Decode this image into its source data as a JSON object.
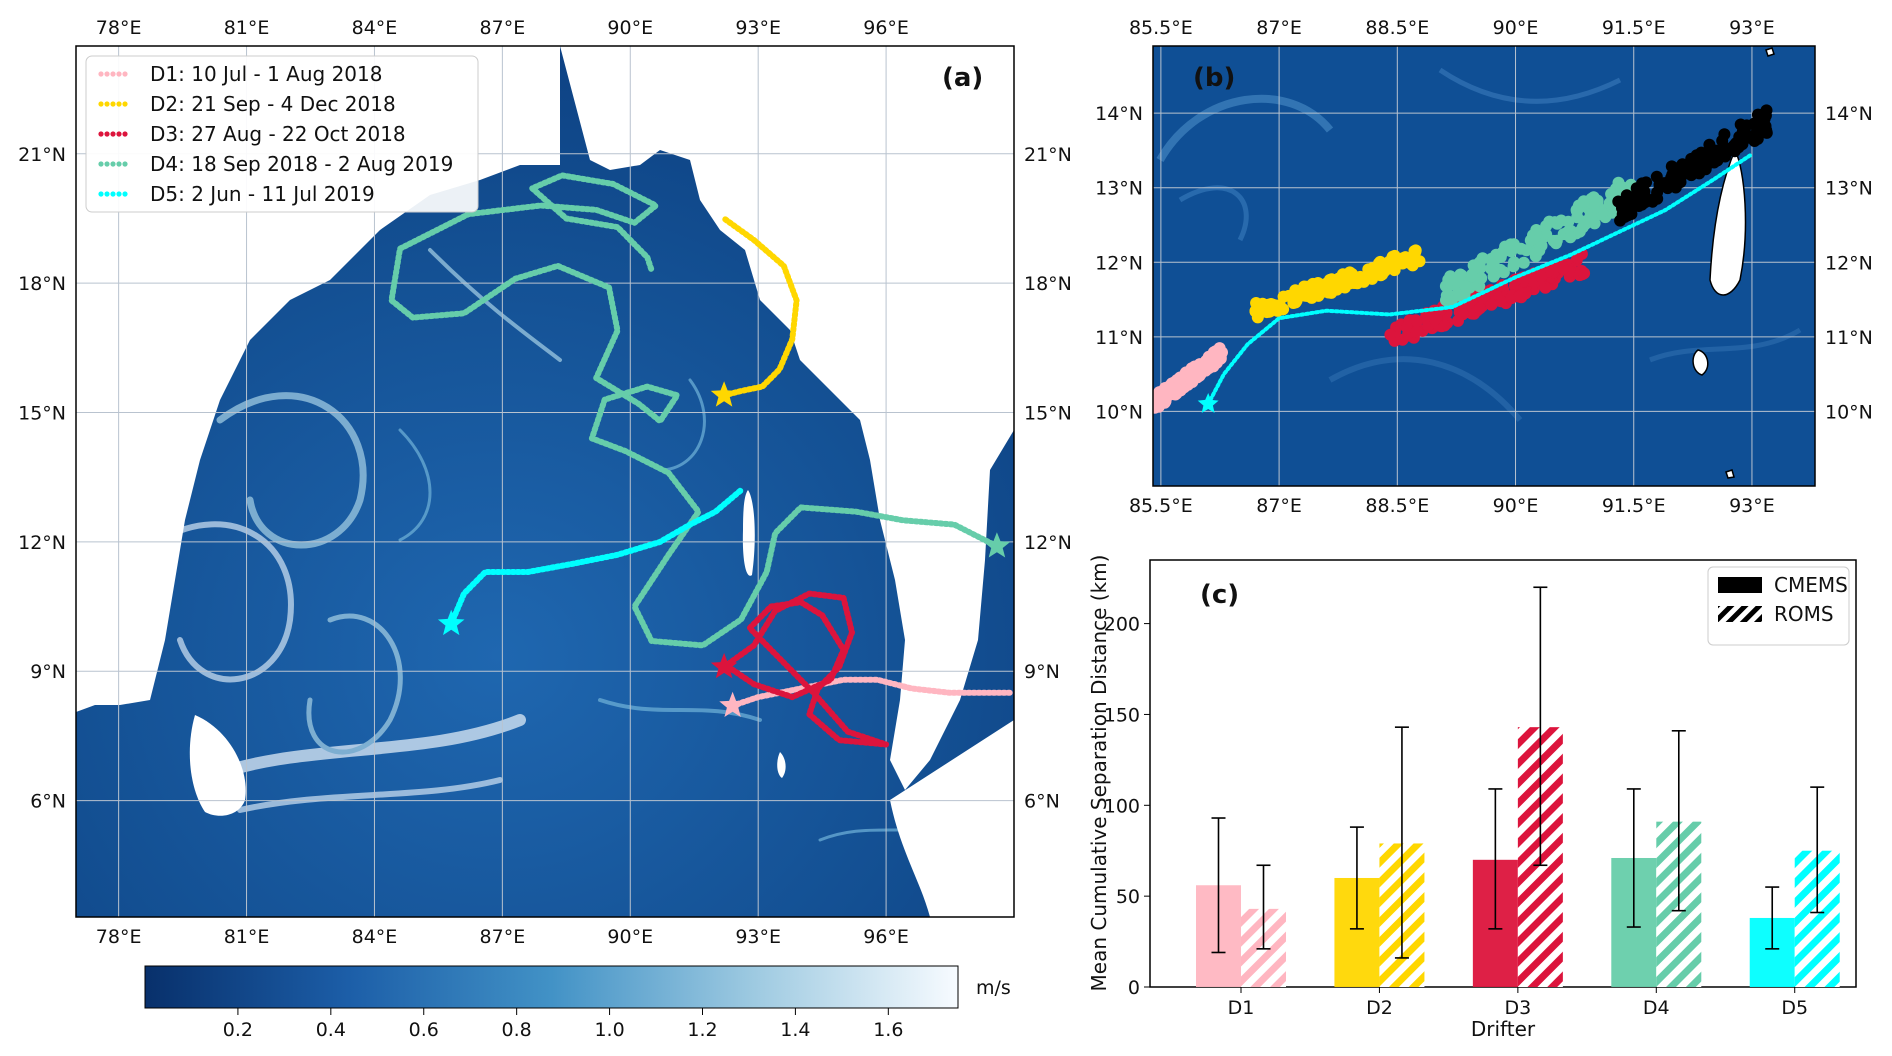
{
  "colors": {
    "D1": "#FFB6C1",
    "D2": "#FFD700",
    "D3": "#DC143C",
    "D4": "#66CDAA",
    "D5": "#00FFFF",
    "land": "#ffffff",
    "ocean_dark": "#08306b",
    "ocean_mid": "#1c5ea8",
    "ocean_light": "#f7fbff",
    "grid": "#b9c3cf"
  },
  "panel_a": {
    "label": "(a)",
    "x_ticks": [
      "78°E",
      "81°E",
      "84°E",
      "87°E",
      "90°E",
      "93°E",
      "96°E"
    ],
    "y_ticks": [
      "21°N",
      "18°N",
      "15°N",
      "12°N",
      "9°N",
      "6°N"
    ],
    "lon_range": [
      77,
      99
    ],
    "lat_range": [
      3.3,
      23.5
    ],
    "legend": [
      {
        "id": "D1",
        "label": "D1: 10 Jul - 1 Aug 2018"
      },
      {
        "id": "D2",
        "label": "D2: 21 Sep - 4 Dec 2018"
      },
      {
        "id": "D3",
        "label": "D3: 27 Aug - 22 Oct 2018"
      },
      {
        "id": "D4",
        "label": "D4: 18 Sep 2018 - 2 Aug 2019"
      },
      {
        "id": "D5",
        "label": "D5: 2 Jun - 11 Jul 2019"
      }
    ],
    "colorbar": {
      "unit": "m/s",
      "ticks": [
        "0.2",
        "0.4",
        "0.6",
        "0.8",
        "1.0",
        "1.2",
        "1.4",
        "1.6"
      ],
      "range": [
        0,
        1.75
      ]
    },
    "tracks": {
      "D1": [
        [
          92.4,
          8.2
        ],
        [
          93,
          8.4
        ],
        [
          94,
          8.6
        ],
        [
          95,
          8.8
        ],
        [
          95.8,
          8.8
        ],
        [
          96.6,
          8.6
        ],
        [
          97.5,
          8.5
        ],
        [
          98.3,
          8.5
        ],
        [
          98.9,
          8.5
        ]
      ],
      "D2": [
        [
          92.2,
          15.4
        ],
        [
          92.6,
          15.5
        ],
        [
          93.1,
          15.6
        ],
        [
          93.5,
          16
        ],
        [
          93.8,
          16.7
        ],
        [
          93.9,
          17.6
        ],
        [
          93.6,
          18.4
        ],
        [
          92.9,
          19
        ],
        [
          92.2,
          19.5
        ]
      ],
      "D3": [
        [
          92.2,
          9.1
        ],
        [
          92.9,
          9.6
        ],
        [
          93.4,
          10.4
        ],
        [
          94.2,
          10.8
        ],
        [
          95,
          10.7
        ],
        [
          95.2,
          9.9
        ],
        [
          94.9,
          9.1
        ],
        [
          94.4,
          8.6
        ],
        [
          94.2,
          8
        ],
        [
          94.9,
          7.4
        ],
        [
          96,
          7.3
        ],
        [
          95.1,
          7.6
        ],
        [
          94.3,
          8.5
        ],
        [
          93.4,
          9.4
        ],
        [
          92.8,
          10
        ],
        [
          93.3,
          10.5
        ],
        [
          94,
          10.6
        ],
        [
          94.5,
          10.3
        ],
        [
          95,
          9.5
        ],
        [
          94.7,
          8.8
        ],
        [
          93.8,
          8.4
        ],
        [
          92.9,
          8.7
        ],
        [
          92.3,
          9.1
        ]
      ],
      "D4": [
        [
          98.6,
          11.9
        ],
        [
          97.6,
          12.4
        ],
        [
          96.4,
          12.5
        ],
        [
          95.3,
          12.7
        ],
        [
          94,
          12.8
        ],
        [
          93.4,
          12.2
        ],
        [
          93.2,
          11.3
        ],
        [
          92.6,
          10.2
        ],
        [
          91.7,
          9.6
        ],
        [
          90.5,
          9.7
        ],
        [
          90.1,
          10.5
        ],
        [
          90.9,
          11.7
        ],
        [
          91.6,
          12.7
        ],
        [
          90.9,
          13.6
        ],
        [
          89.9,
          14.1
        ],
        [
          89.1,
          14.4
        ],
        [
          89.4,
          15.3
        ],
        [
          90.4,
          15.6
        ],
        [
          91.1,
          15.4
        ],
        [
          90.7,
          14.8
        ],
        [
          90.2,
          15.2
        ],
        [
          89.2,
          15.8
        ],
        [
          89.7,
          16.9
        ],
        [
          89.5,
          17.9
        ],
        [
          88.3,
          18.4
        ],
        [
          87.3,
          18.1
        ],
        [
          86.1,
          17.3
        ],
        [
          84.9,
          17.2
        ],
        [
          84.4,
          17.6
        ],
        [
          84.6,
          18.8
        ],
        [
          86.2,
          19.6
        ],
        [
          87.9,
          19.8
        ],
        [
          89.2,
          19.7
        ],
        [
          90.1,
          19.4
        ],
        [
          90.6,
          19.8
        ],
        [
          89.6,
          20.3
        ],
        [
          88.4,
          20.5
        ],
        [
          87.7,
          20.2
        ],
        [
          88.5,
          19.5
        ],
        [
          89.7,
          19.3
        ],
        [
          90.4,
          18.6
        ],
        [
          90.5,
          18.3
        ]
      ],
      "D5": [
        [
          85.8,
          10.1
        ],
        [
          86.1,
          10.8
        ],
        [
          86.6,
          11.3
        ],
        [
          87.6,
          11.3
        ],
        [
          88.7,
          11.5
        ],
        [
          89.7,
          11.7
        ],
        [
          90.7,
          12
        ],
        [
          91.4,
          12.4
        ],
        [
          92,
          12.7
        ],
        [
          92.6,
          13.2
        ]
      ]
    },
    "starts": {
      "D1": [
        92.4,
        8.2
      ],
      "D2": [
        92.2,
        15.4
      ],
      "D3": [
        92.2,
        9.1
      ],
      "D4": [
        98.6,
        11.9
      ],
      "D5": [
        85.8,
        10.1
      ]
    }
  },
  "panel_b": {
    "label": "(b)",
    "x_ticks": [
      "85.5°E",
      "87°E",
      "88.5°E",
      "90°E",
      "91.5°E",
      "93°E"
    ],
    "y_ticks": [
      "14°N",
      "13°N",
      "12°N",
      "11°N",
      "10°N"
    ],
    "lon_range": [
      85.4,
      93.8
    ],
    "lat_range": [
      9.0,
      14.9
    ],
    "clouds": [
      {
        "id": "D1",
        "lon": [
          85.4,
          86.3
        ],
        "lat": [
          10.1,
          10.8
        ]
      },
      {
        "id": "D2",
        "lon": [
          86.7,
          88.8
        ],
        "lat": [
          11.35,
          12.1
        ]
      },
      {
        "id": "D3",
        "lon": [
          88.4,
          90.9
        ],
        "lat": [
          11.0,
          12.0
        ]
      },
      {
        "id": "D4",
        "lon": [
          89.1,
          91.5
        ],
        "lat": [
          11.6,
          13.0
        ]
      },
      {
        "id": "CMEMS",
        "lon": [
          91.3,
          93.2
        ],
        "lat": [
          12.7,
          13.9
        ]
      }
    ],
    "track_D5": [
      [
        86.1,
        10.1
      ],
      [
        86.3,
        10.5
      ],
      [
        86.6,
        10.9
      ],
      [
        87,
        11.25
      ],
      [
        87.6,
        11.35
      ],
      [
        88.4,
        11.3
      ],
      [
        89.2,
        11.4
      ],
      [
        90,
        11.8
      ],
      [
        90.7,
        12.1
      ],
      [
        91.3,
        12.4
      ],
      [
        91.9,
        12.7
      ],
      [
        92.5,
        13.1
      ],
      [
        93,
        13.45
      ]
    ]
  },
  "panel_c": {
    "label": "(c)",
    "xlabel": "Drifter",
    "ylabel": "Mean Cumulative Separation Distance (km)",
    "y_ticks": [
      "0",
      "50",
      "100",
      "150",
      "200"
    ],
    "legend": [
      {
        "style": "solid",
        "label": "CMEMS"
      },
      {
        "style": "hatched",
        "label": "ROMS"
      }
    ]
  },
  "chart_data": {
    "type": "bar",
    "categories": [
      "D1",
      "D2",
      "D3",
      "D4",
      "D5"
    ],
    "xlabel": "Drifter",
    "ylabel": "Mean Cumulative Separation Distance (km)",
    "ylim": [
      0,
      235
    ],
    "series": [
      {
        "name": "CMEMS",
        "values": [
          56,
          60,
          70,
          71,
          38
        ],
        "err_low": [
          19,
          32,
          32,
          33,
          21
        ],
        "err_high": [
          93,
          88,
          109,
          109,
          55
        ]
      },
      {
        "name": "ROMS",
        "values": [
          43,
          79,
          143,
          91,
          75
        ],
        "err_low": [
          21,
          16,
          67,
          42,
          41
        ],
        "err_high": [
          67,
          143,
          220,
          141,
          110
        ]
      }
    ],
    "legend_position": "top-right",
    "grid": false
  }
}
